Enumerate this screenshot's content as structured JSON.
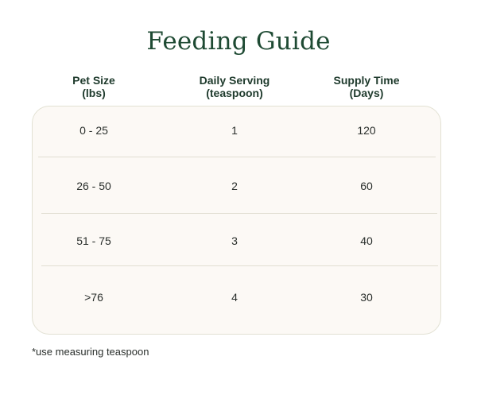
{
  "title": "Feeding Guide",
  "headers": [
    {
      "line1": "Pet Size",
      "line2": "(lbs)"
    },
    {
      "line1": "Daily Serving",
      "line2": "(teaspoon)"
    },
    {
      "line1": "Supply Time",
      "line2": "(Days)"
    }
  ],
  "rows": [
    {
      "size": "0 - 25",
      "serving": "1",
      "supply": "120"
    },
    {
      "size": "26 - 50",
      "serving": "2",
      "supply": "60"
    },
    {
      "size": "51 - 75",
      "serving": "3",
      "supply": "40"
    },
    {
      "size": ">76",
      "serving": "4",
      "supply": "30"
    }
  ],
  "footnote": "*use measuring teaspoon",
  "colors": {
    "title": "#1e4a33",
    "card_background": "#fcf9f5",
    "card_border": "#e2e1d3"
  }
}
